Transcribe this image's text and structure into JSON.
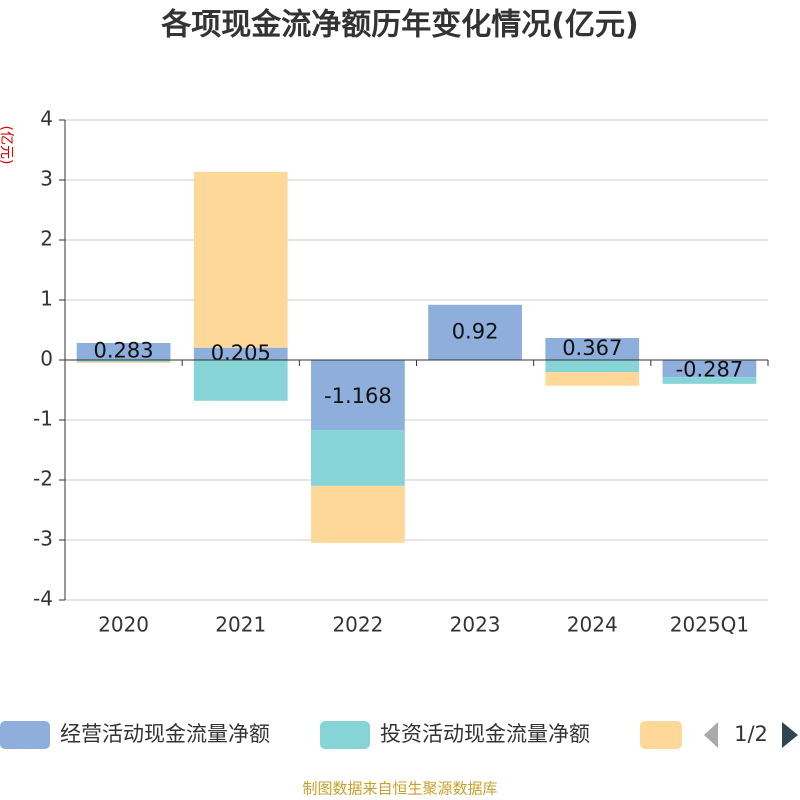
{
  "chart_data": {
    "type": "stacked-bar",
    "title": "各项现金流净额历年变化情况(亿元)",
    "y_label": "(亿元)",
    "categories": [
      "2020",
      "2021",
      "2022",
      "2023",
      "2024",
      "2025Q1"
    ],
    "series": [
      {
        "name": "经营活动现金流量净额",
        "color": "#8eaedb",
        "values": [
          0.283,
          0.205,
          -1.168,
          0.92,
          0.367,
          -0.287
        ],
        "labels": true
      },
      {
        "name": "投资活动现金流量净额",
        "color": "#87d4d6",
        "values": [
          -0.03,
          -0.68,
          -0.93,
          0,
          -0.2,
          -0.11
        ]
      },
      {
        "color": "#fed898",
        "values": [
          -0.02,
          2.93,
          -0.95,
          0,
          -0.23,
          0
        ]
      }
    ],
    "ylim": [
      -4,
      4
    ],
    "yticks": [
      -4,
      -3,
      -2,
      -1,
      0,
      1,
      2,
      3,
      4
    ],
    "grid": true,
    "legend_page": "1/2",
    "source": "制图数据来自恒生聚源数据库"
  }
}
